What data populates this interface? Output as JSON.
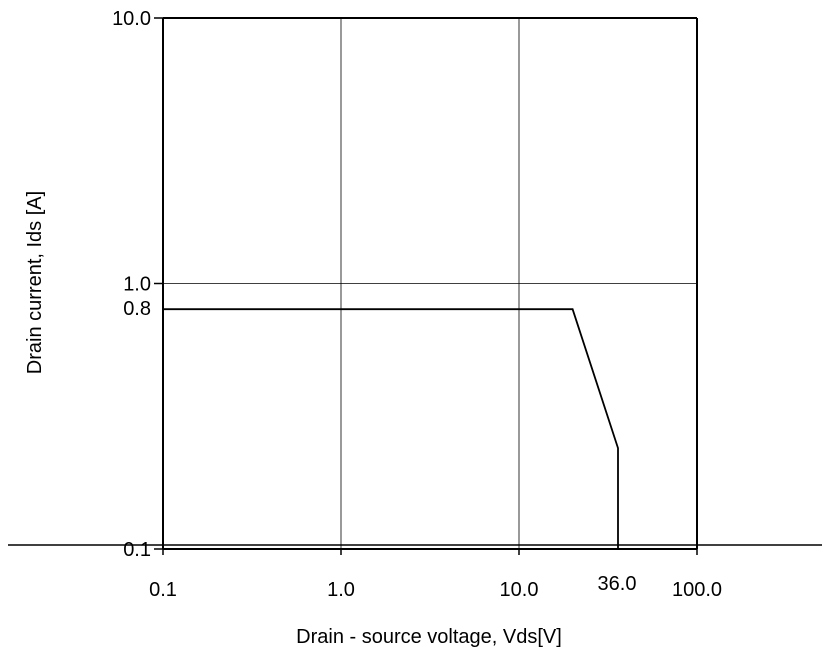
{
  "chart_data": {
    "type": "line",
    "x_scale": "log",
    "y_scale": "log",
    "xlim": [
      0.1,
      100.0
    ],
    "ylim": [
      0.1,
      10.0
    ],
    "grid": true,
    "xlabel": "Drain - source voltage, Vds[V]",
    "ylabel": "Drain current, Ids [A]",
    "x_ticks": [
      {
        "value": 0.1,
        "label": "0.1"
      },
      {
        "value": 1.0,
        "label": "1.0"
      },
      {
        "value": 10.0,
        "label": "10.0"
      },
      {
        "value": 100.0,
        "label": "100.0"
      }
    ],
    "y_ticks": [
      {
        "value": 0.1,
        "label": "0.1"
      },
      {
        "value": 1.0,
        "label": "1.0"
      },
      {
        "value": 10.0,
        "label": "10.0"
      }
    ],
    "annotations": [
      {
        "axis": "y",
        "value": 0.8,
        "label": "0.8"
      },
      {
        "axis": "x",
        "value": 36.0,
        "label": "36.0"
      }
    ],
    "series": [
      {
        "color": "#000000",
        "points": [
          {
            "x": 0.1,
            "y": 0.8
          },
          {
            "x": 20.0,
            "y": 0.8
          },
          {
            "x": 36.0,
            "y": 0.24
          },
          {
            "x": 36.0,
            "y": 0.1
          }
        ]
      }
    ],
    "colors": {
      "line": "#000000",
      "grid": "#000000",
      "background": "#ffffff"
    }
  }
}
